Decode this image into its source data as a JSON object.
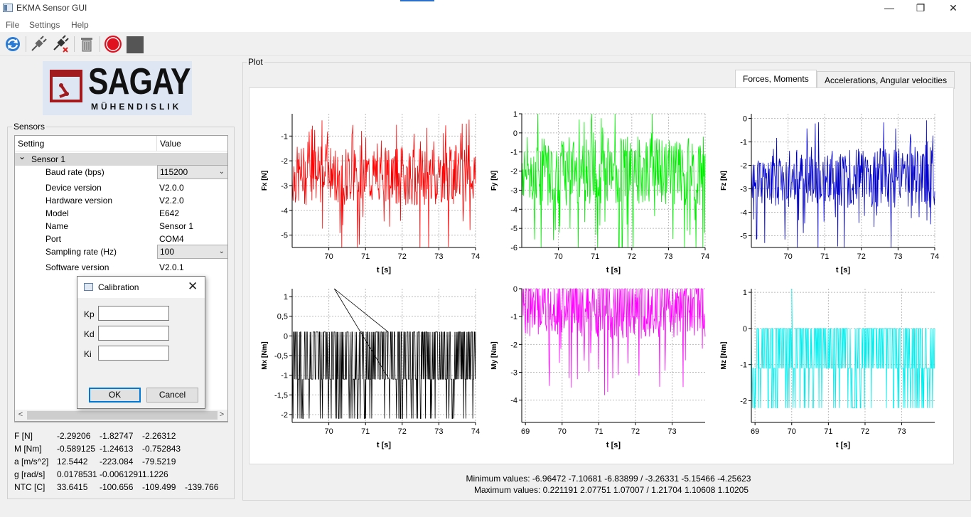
{
  "window": {
    "title": "EKMA Sensor GUI",
    "minimize": "—",
    "restore": "❐",
    "close": "✕"
  },
  "menu": [
    "File",
    "Settings",
    "Help"
  ],
  "toolbar": {
    "icons": [
      "refresh-icon",
      "plug-connect-icon",
      "plug-disconnect-icon",
      "trash-icon",
      "record-icon",
      "stop-icon"
    ],
    "colors": {
      "record": "#e01020",
      "stop": "#555555",
      "refresh": "#2a7bd4"
    }
  },
  "logo": {
    "main": "SAGAY",
    "sub": "MÜHENDISLIK",
    "colors": {
      "red": "#a01a1e",
      "dark": "#1a1a1a",
      "bg": "#dde6f2"
    }
  },
  "sensors": {
    "group_title": "Sensors",
    "col_setting": "Setting",
    "col_value": "Value",
    "parent": {
      "expander": "⌄",
      "label": "Sensor 1"
    },
    "rows": [
      {
        "key": "Baud rate (bps)",
        "value": "115200",
        "combo": true
      },
      {
        "key": "Device version",
        "value": "V2.0.0"
      },
      {
        "key": "Hardware version",
        "value": "V2.2.0"
      },
      {
        "key": "Model",
        "value": "E642"
      },
      {
        "key": "Name",
        "value": "Sensor 1"
      },
      {
        "key": "Port",
        "value": "COM4"
      },
      {
        "key": "Sampling rate (Hz)",
        "value": "100",
        "combo": true
      },
      {
        "key": "Software version",
        "value": "V2.0.1"
      }
    ],
    "combo_arrow": "⌄",
    "scroll_left": "<",
    "scroll_right": ">"
  },
  "readout": [
    {
      "label": "F [N]",
      "values": [
        "-2.29206",
        "-1.82747",
        "-2.26312"
      ]
    },
    {
      "label": "M [Nm]",
      "values": [
        "-0.589125",
        "-1.24613",
        "-0.752843"
      ]
    },
    {
      "label": "a [m/s^2]",
      "values": [
        "12.5442",
        "-223.084",
        "-79.5219"
      ]
    },
    {
      "label": "g [rad/s]",
      "values": [
        "0.0178531",
        "-0.00612911",
        "1.1226"
      ]
    },
    {
      "label": "NTC [C]",
      "values": [
        "33.6415",
        "-100.656",
        "-109.499",
        "-139.766"
      ]
    }
  ],
  "calibration": {
    "title": "Calibration",
    "close": "✕",
    "fields": [
      {
        "label": "Kp",
        "value": ""
      },
      {
        "label": "Kd",
        "value": ""
      },
      {
        "label": "Ki",
        "value": ""
      }
    ],
    "ok": "OK",
    "cancel": "Cancel"
  },
  "plot": {
    "group_title": "Plot",
    "tabs": [
      "Forces, Moments",
      "Accelerations, Angular velocities"
    ],
    "active_tab": 0,
    "min_values": "Minimum values: -6.96472 -7.10681 -6.83899 / -3.26331 -5.15466 -4.25623",
    "max_values": "Maximum values: 0.221191 2.07751 1.07007 / 1.21704 1.10608 1.10205"
  },
  "chart_data": [
    {
      "type": "line",
      "ylabel": "Fx [N]",
      "xlabel": "t [s]",
      "color": "#ff0000",
      "xlim": [
        69,
        74
      ],
      "ylim": [
        -5.5,
        -0.1
      ],
      "xticks": [
        "70",
        "71",
        "72",
        "73",
        "74"
      ],
      "yticks": [
        "-1",
        "-2",
        "-3",
        "-4",
        "-5"
      ],
      "series": [
        {
          "mean": -2.6,
          "spread": 1.2,
          "min": -5.5,
          "max": -0.1
        }
      ]
    },
    {
      "type": "line",
      "ylabel": "Fy [N]",
      "xlabel": "t [s]",
      "color": "#00ee00",
      "xlim": [
        69,
        74
      ],
      "ylim": [
        -6,
        1
      ],
      "xticks": [
        "70",
        "71",
        "72",
        "73",
        "74"
      ],
      "yticks": [
        "1",
        "0",
        "-1",
        "-2",
        "-3",
        "-4",
        "-5",
        "-6"
      ],
      "series": [
        {
          "mean": -2.0,
          "spread": 1.8,
          "min": -6,
          "max": 1
        }
      ]
    },
    {
      "type": "line",
      "ylabel": "Fz [N]",
      "xlabel": "t [s]",
      "color": "#0000cc",
      "xlim": [
        69,
        74
      ],
      "ylim": [
        -5.5,
        0.2
      ],
      "xticks": [
        "70",
        "71",
        "72",
        "73",
        "74"
      ],
      "yticks": [
        "0",
        "-1",
        "-2",
        "-3",
        "-4",
        "-5"
      ],
      "series": [
        {
          "mean": -2.5,
          "spread": 1.3,
          "min": -5.5,
          "max": 0.1
        }
      ]
    },
    {
      "type": "line",
      "ylabel": "Mx [Nm]",
      "xlabel": "t [s]",
      "color": "#000000",
      "xlim": [
        69,
        74
      ],
      "ylim": [
        -2.2,
        1.2
      ],
      "xticks": [
        "70",
        "71",
        "72",
        "73",
        "74"
      ],
      "yticks": [
        "1",
        "0,5",
        "0",
        "-0,5",
        "-1",
        "-1,5",
        "-2"
      ],
      "series": [
        {
          "levels": [
            0.1,
            -1.1,
            -2.1
          ]
        }
      ]
    },
    {
      "type": "line",
      "ylabel": "My [Nm]",
      "xlabel": "t [s]",
      "color": "#ff00ff",
      "xlim": [
        68.9,
        73.9
      ],
      "ylim": [
        -4.8,
        0
      ],
      "xticks": [
        "69",
        "70",
        "71",
        "72",
        "73"
      ],
      "yticks": [
        "0",
        "-1",
        "-2",
        "-3",
        "-4"
      ],
      "series": [
        {
          "mean": -0.6,
          "spread": 1.2,
          "min": -4.8,
          "max": 0
        }
      ]
    },
    {
      "type": "line",
      "ylabel": "Mz [Nm]",
      "xlabel": "t [s]",
      "color": "#00eeee",
      "xlim": [
        68.9,
        73.9
      ],
      "ylim": [
        -2.6,
        1.1
      ],
      "xticks": [
        "69",
        "70",
        "71",
        "72",
        "73"
      ],
      "yticks": [
        "1",
        "0",
        "-1",
        "-2"
      ],
      "series": [
        {
          "levels": [
            0,
            -1.1,
            -2.2
          ]
        }
      ]
    }
  ]
}
